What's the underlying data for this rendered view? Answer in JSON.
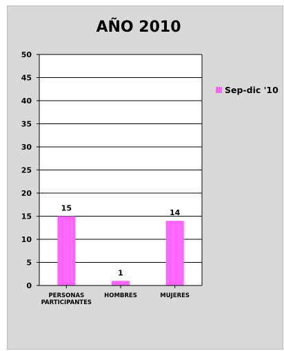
{
  "chart_data": {
    "type": "bar",
    "title": "AÑO 2010",
    "categories": [
      [
        "PERSONAS",
        "PARTICIPANTES"
      ],
      [
        "HOMBRES"
      ],
      [
        "MUJERES"
      ]
    ],
    "series": [
      {
        "name": "Sep-dic '10",
        "values": [
          15,
          1,
          14
        ],
        "color": "#ff66ff"
      }
    ],
    "ylim": [
      0,
      50
    ],
    "yticks": [
      0,
      5,
      10,
      15,
      20,
      25,
      30,
      35,
      40,
      45,
      50
    ],
    "grid": true,
    "legend_position": "right",
    "show_data_labels": true
  }
}
